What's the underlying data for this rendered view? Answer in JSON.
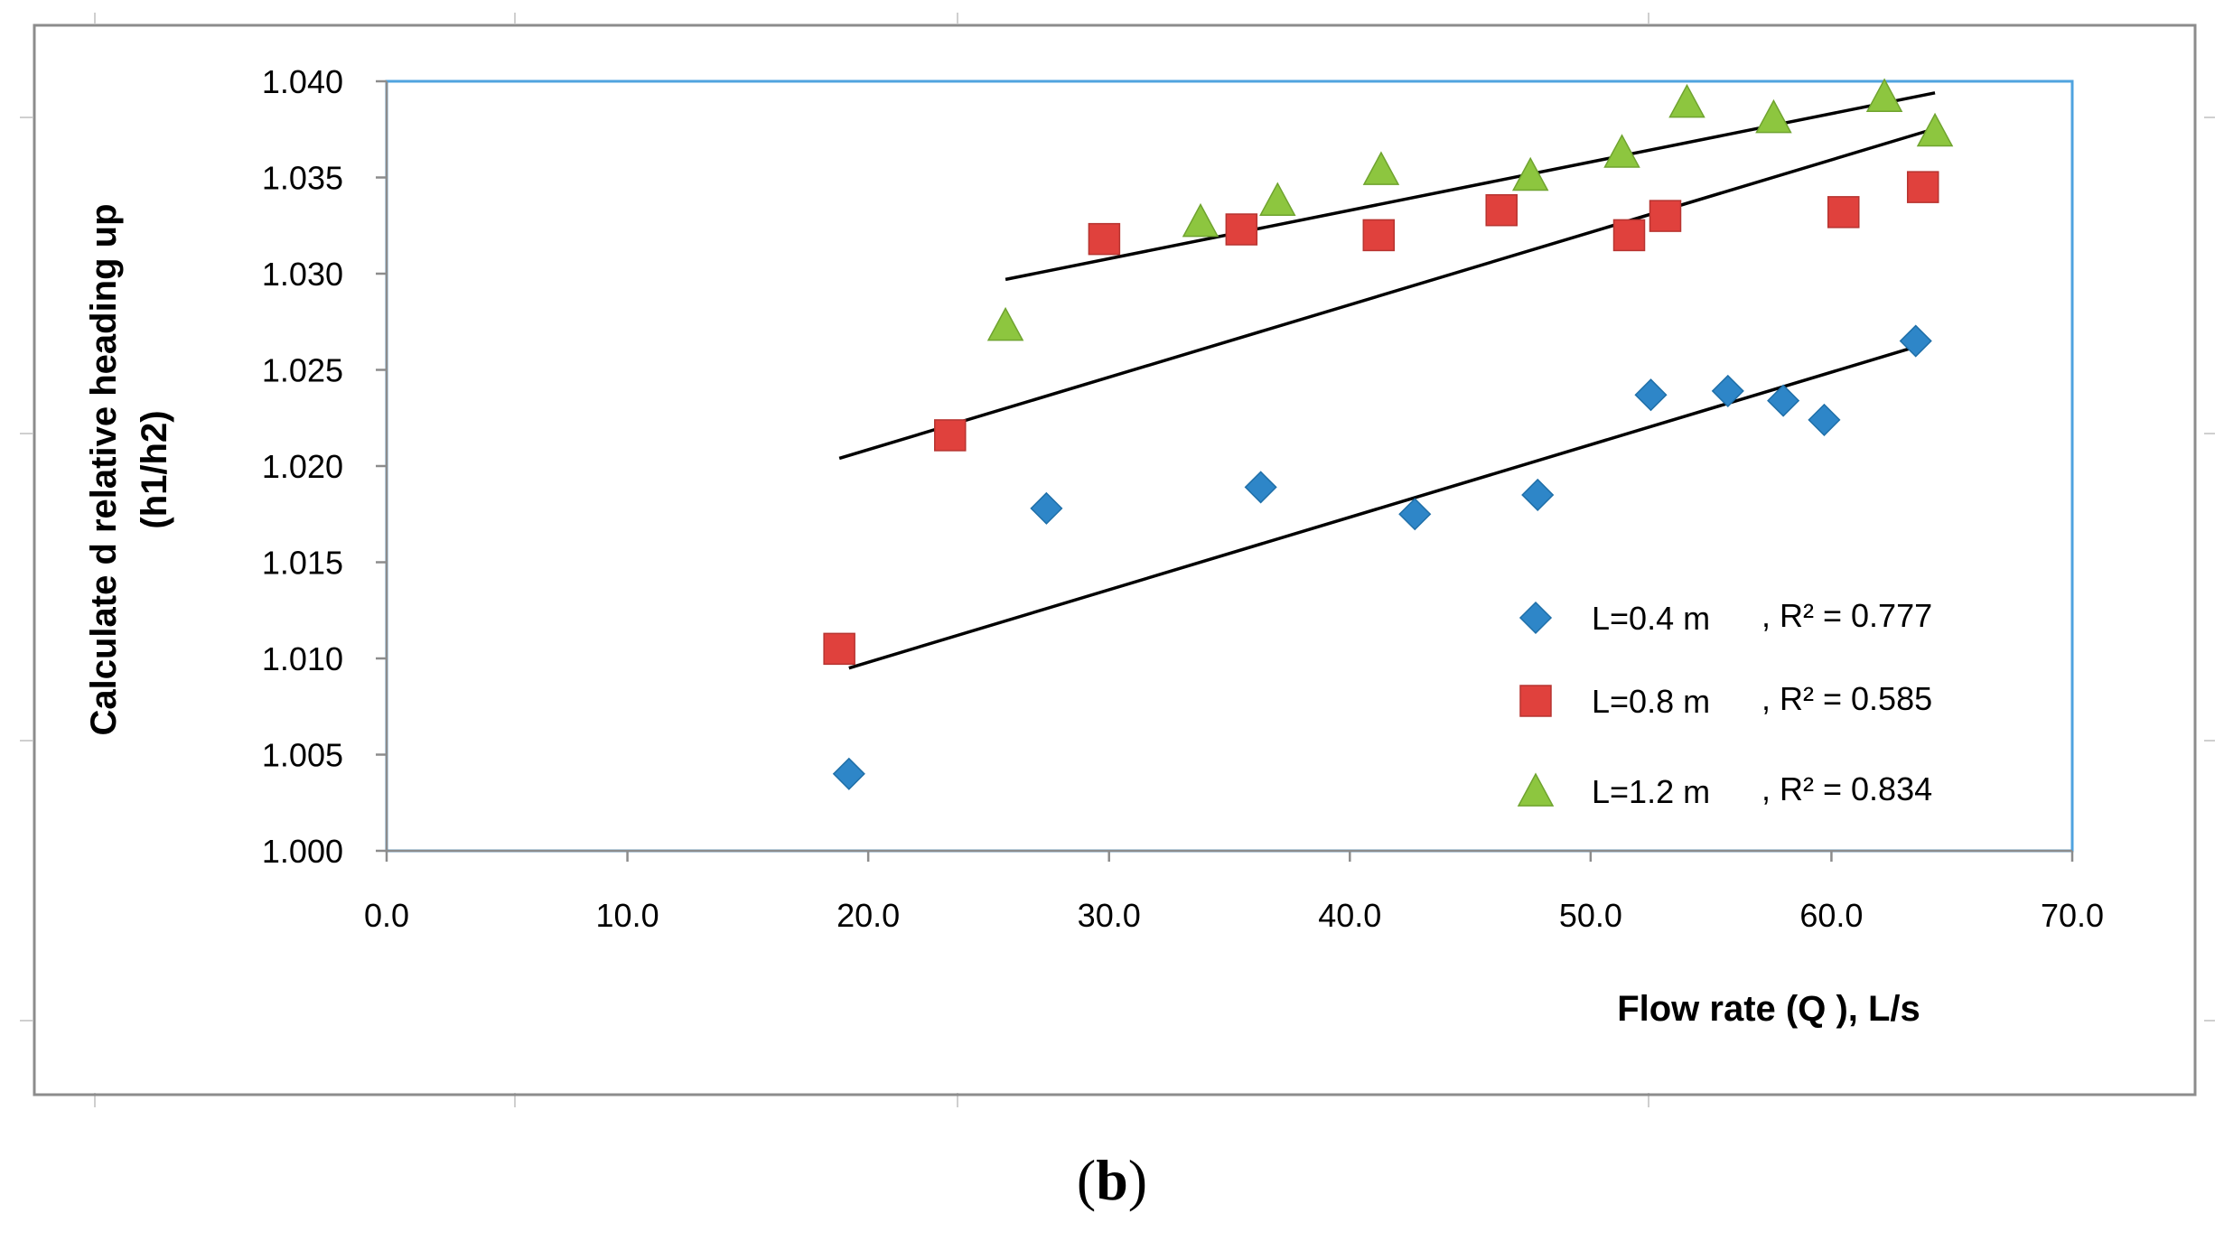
{
  "chart_data": {
    "type": "scatter",
    "title": "",
    "xlabel": "Flow rate (Q ), L/s",
    "ylabel_lines": [
      "Calculate d relative heading up",
      "(h1/h2)"
    ],
    "xlim": [
      0,
      70
    ],
    "ylim": [
      1.0,
      1.04
    ],
    "x_ticks": [
      "0.0",
      "10.0",
      "20.0",
      "30.0",
      "40.0",
      "50.0",
      "60.0",
      "70.0"
    ],
    "y_ticks": [
      "1.000",
      "1.005",
      "1.010",
      "1.015",
      "1.020",
      "1.025",
      "1.030",
      "1.035",
      "1.040"
    ],
    "grid": false,
    "legend_position": "bottom-right",
    "series": [
      {
        "name": "L=0.4 m",
        "r2_label": ", R² = 0.777",
        "marker": "diamond",
        "color": "#2e86c8",
        "x": [
          19.2,
          27.4,
          36.3,
          42.7,
          47.8,
          52.5,
          55.7,
          58.0,
          59.7,
          63.5
        ],
        "y": [
          1.004,
          1.0178,
          1.0189,
          1.0175,
          1.0185,
          1.0237,
          1.0239,
          1.0234,
          1.0224,
          1.0265
        ],
        "trend": {
          "x": [
            19.2,
            63.5
          ],
          "y": [
            1.0095,
            1.0262
          ]
        }
      },
      {
        "name": "L=0.8 m",
        "r2_label": ", R² = 0.585",
        "marker": "square",
        "color": "#e0413d",
        "x": [
          18.8,
          23.4,
          29.8,
          35.5,
          41.2,
          46.3,
          51.6,
          53.1,
          60.5,
          63.8
        ],
        "y": [
          1.0105,
          1.0216,
          1.0318,
          1.0323,
          1.032,
          1.0333,
          1.032,
          1.033,
          1.0332,
          1.0345
        ],
        "trend": {
          "x": [
            18.8,
            64.2
          ],
          "y": [
            1.0204,
            1.0375
          ]
        }
      },
      {
        "name": "L=1.2 m",
        "r2_label": ", R² = 0.834",
        "marker": "triangle",
        "color": "#8dc63f",
        "x": [
          25.7,
          33.8,
          37.0,
          41.3,
          47.5,
          51.3,
          54.0,
          57.6,
          62.2,
          64.3
        ],
        "y": [
          1.0273,
          1.0327,
          1.0338,
          1.0354,
          1.0351,
          1.0363,
          1.0389,
          1.0381,
          1.0392,
          1.0374
        ],
        "trend": {
          "x": [
            25.7,
            64.3
          ],
          "y": [
            1.0297,
            1.0394
          ]
        }
      }
    ]
  },
  "caption": {
    "open": "(",
    "letter": "b",
    "close": ")"
  }
}
